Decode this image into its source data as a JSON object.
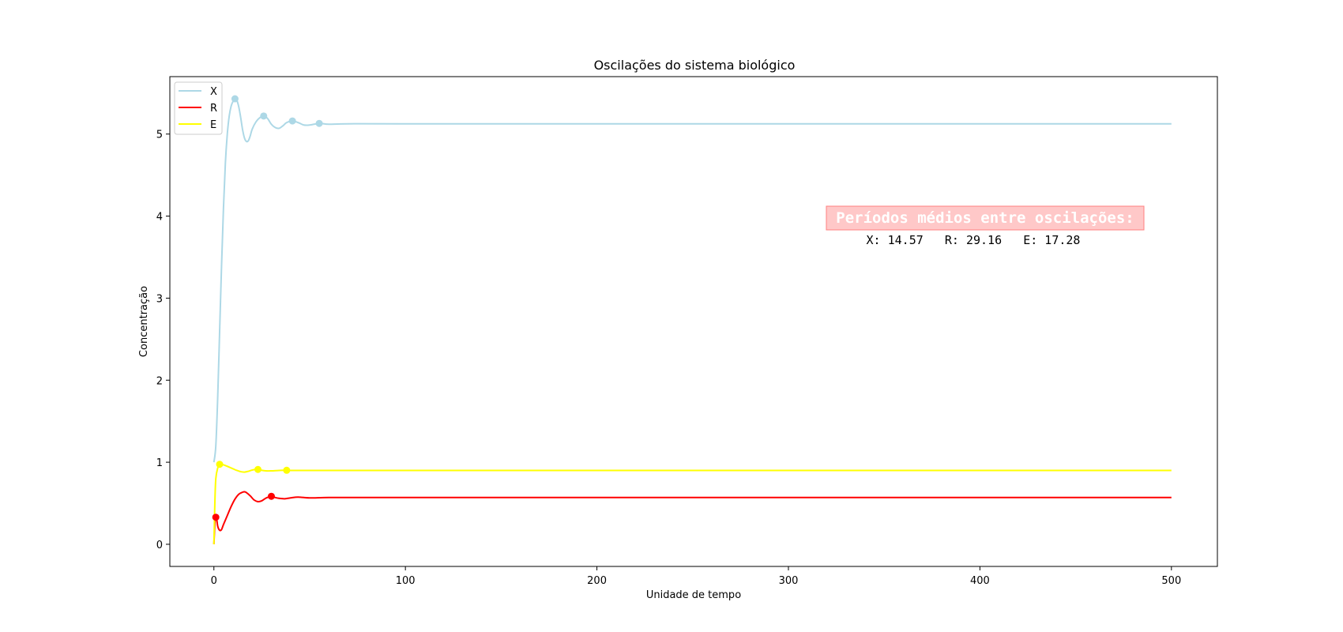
{
  "chart_data": {
    "type": "line",
    "title": "Oscilações do sistema biológico",
    "xlabel": "Unidade de tempo",
    "ylabel": "Concentração",
    "xlim": [
      -23,
      524
    ],
    "ylim": [
      -0.27,
      5.7
    ],
    "xticks": [
      0,
      100,
      200,
      300,
      400,
      500
    ],
    "yticks": [
      0,
      1,
      2,
      3,
      4,
      5
    ],
    "grid": false,
    "legend_position": "upper-left",
    "series": [
      {
        "name": "X",
        "color": "#add8e6",
        "points": [
          [
            0,
            1.0
          ],
          [
            1,
            1.2
          ],
          [
            2,
            1.8
          ],
          [
            3,
            2.6
          ],
          [
            4,
            3.4
          ],
          [
            5,
            4.1
          ],
          [
            6,
            4.65
          ],
          [
            7,
            5.0
          ],
          [
            8,
            5.22
          ],
          [
            9,
            5.34
          ],
          [
            10,
            5.4
          ],
          [
            11,
            5.43
          ],
          [
            12,
            5.41
          ],
          [
            13,
            5.33
          ],
          [
            14,
            5.2
          ],
          [
            15,
            5.05
          ],
          [
            16,
            4.95
          ],
          [
            17,
            4.91
          ],
          [
            18,
            4.92
          ],
          [
            19,
            4.98
          ],
          [
            20,
            5.06
          ],
          [
            22,
            5.15
          ],
          [
            24,
            5.2
          ],
          [
            26,
            5.22
          ],
          [
            28,
            5.19
          ],
          [
            30,
            5.12
          ],
          [
            32,
            5.08
          ],
          [
            34,
            5.07
          ],
          [
            36,
            5.1
          ],
          [
            38,
            5.14
          ],
          [
            41,
            5.16
          ],
          [
            44,
            5.14
          ],
          [
            47,
            5.11
          ],
          [
            50,
            5.11
          ],
          [
            55,
            5.13
          ],
          [
            60,
            5.12
          ],
          [
            70,
            5.125
          ],
          [
            100,
            5.125
          ],
          [
            200,
            5.125
          ],
          [
            300,
            5.125
          ],
          [
            400,
            5.125
          ],
          [
            500,
            5.125
          ]
        ],
        "peaks": [
          [
            11,
            5.43
          ],
          [
            26,
            5.22
          ],
          [
            41,
            5.16
          ],
          [
            55,
            5.13
          ]
        ]
      },
      {
        "name": "R",
        "color": "#ff0000",
        "points": [
          [
            0,
            0.0
          ],
          [
            0.5,
            0.25
          ],
          [
            1,
            0.33
          ],
          [
            1.5,
            0.3
          ],
          [
            2,
            0.22
          ],
          [
            3,
            0.17
          ],
          [
            4,
            0.18
          ],
          [
            5,
            0.24
          ],
          [
            7,
            0.35
          ],
          [
            9,
            0.46
          ],
          [
            11,
            0.55
          ],
          [
            13,
            0.61
          ],
          [
            15,
            0.635
          ],
          [
            16,
            0.64
          ],
          [
            17,
            0.63
          ],
          [
            19,
            0.59
          ],
          [
            21,
            0.54
          ],
          [
            23,
            0.52
          ],
          [
            25,
            0.53
          ],
          [
            27,
            0.56
          ],
          [
            29,
            0.58
          ],
          [
            30,
            0.585
          ],
          [
            32,
            0.57
          ],
          [
            34,
            0.56
          ],
          [
            37,
            0.555
          ],
          [
            40,
            0.565
          ],
          [
            44,
            0.575
          ],
          [
            50,
            0.565
          ],
          [
            60,
            0.57
          ],
          [
            80,
            0.57
          ],
          [
            100,
            0.57
          ],
          [
            200,
            0.57
          ],
          [
            300,
            0.57
          ],
          [
            400,
            0.57
          ],
          [
            500,
            0.57
          ]
        ],
        "peaks": [
          [
            1,
            0.33
          ],
          [
            30,
            0.585
          ]
        ]
      },
      {
        "name": "E",
        "color": "#ffff00",
        "points": [
          [
            0,
            0.0
          ],
          [
            0.5,
            0.5
          ],
          [
            1,
            0.8
          ],
          [
            2,
            0.93
          ],
          [
            3,
            0.97
          ],
          [
            4,
            0.975
          ],
          [
            6,
            0.96
          ],
          [
            8,
            0.94
          ],
          [
            10,
            0.92
          ],
          [
            12,
            0.9
          ],
          [
            14,
            0.885
          ],
          [
            16,
            0.88
          ],
          [
            18,
            0.89
          ],
          [
            20,
            0.905
          ],
          [
            22,
            0.912
          ],
          [
            24,
            0.905
          ],
          [
            27,
            0.895
          ],
          [
            30,
            0.895
          ],
          [
            34,
            0.9
          ],
          [
            37,
            0.902
          ],
          [
            40,
            0.9
          ],
          [
            45,
            0.9
          ],
          [
            50,
            0.9
          ],
          [
            100,
            0.9
          ],
          [
            200,
            0.9
          ],
          [
            300,
            0.9
          ],
          [
            400,
            0.9
          ],
          [
            500,
            0.9
          ]
        ],
        "peaks": [
          [
            3,
            0.975
          ],
          [
            23,
            0.912
          ],
          [
            38,
            0.902
          ]
        ]
      }
    ],
    "annotation": {
      "heading": "Períodos médios entre oscilações:",
      "heading_bg": "#ffc8c8",
      "heading_border": "#ff8080",
      "values_text": "X: 14.57   R: 29.16   E: 17.28"
    }
  }
}
